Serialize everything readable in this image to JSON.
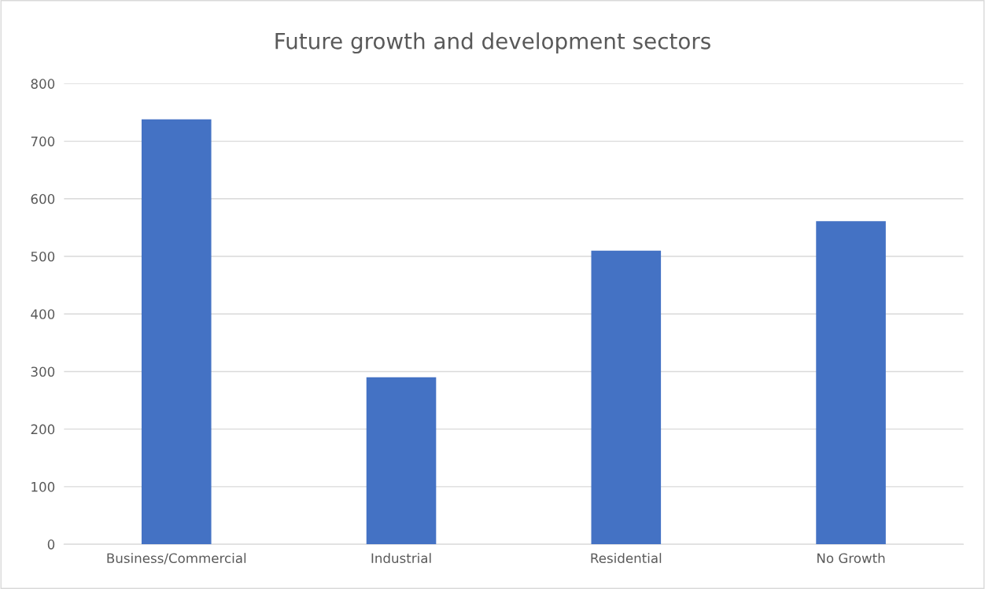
{
  "chart_data": {
    "type": "bar",
    "title": "Future growth and development sectors",
    "categories": [
      "Business/Commercial",
      "Industrial",
      "Residential",
      "No Growth"
    ],
    "values": [
      738,
      290,
      510,
      561
    ],
    "color": "#4472c4",
    "ylim": [
      0,
      800
    ],
    "yticks": [
      0,
      100,
      200,
      300,
      400,
      500,
      600,
      700,
      800
    ],
    "grid": "y"
  }
}
